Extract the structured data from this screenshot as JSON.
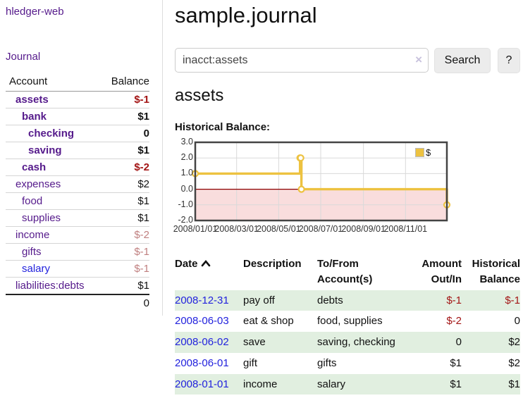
{
  "app": {
    "brand": "hledger-web",
    "nav_journal": "Journal"
  },
  "colors": {
    "link_purple": "#551a8b",
    "link_blue": "#2222dd",
    "negative_strong": "#a31515",
    "negative_soft": "#c08080",
    "series_gold": "#edc240",
    "negative_region_pink": "#f9dddd",
    "zero_line_red": "#8b0000",
    "row_stripe_green": "#e1efe0"
  },
  "sidebar": {
    "header": {
      "account": "Account",
      "balance": "Balance"
    },
    "accounts": [
      {
        "name": "assets",
        "depth": 1,
        "bold": true,
        "link_tone": "purple",
        "balance": "$-1",
        "balance_tone": "neg-strong"
      },
      {
        "name": "bank",
        "depth": 2,
        "bold": true,
        "link_tone": "purple",
        "balance": "$1",
        "balance_tone": "black"
      },
      {
        "name": "checking",
        "depth": 3,
        "bold": true,
        "link_tone": "purple",
        "balance": "0",
        "balance_tone": "black"
      },
      {
        "name": "saving",
        "depth": 3,
        "bold": true,
        "link_tone": "purple",
        "balance": "$1",
        "balance_tone": "black"
      },
      {
        "name": "cash",
        "depth": 2,
        "bold": true,
        "link_tone": "purple",
        "balance": "$-2",
        "balance_tone": "neg-strong"
      },
      {
        "name": "expenses",
        "depth": 1,
        "bold": false,
        "link_tone": "purple",
        "balance": "$2",
        "balance_tone": "black"
      },
      {
        "name": "food",
        "depth": 2,
        "bold": false,
        "link_tone": "purple",
        "balance": "$1",
        "balance_tone": "black"
      },
      {
        "name": "supplies",
        "depth": 2,
        "bold": false,
        "link_tone": "purple",
        "balance": "$1",
        "balance_tone": "black"
      },
      {
        "name": "income",
        "depth": 1,
        "bold": false,
        "link_tone": "purple",
        "balance": "$-2",
        "balance_tone": "neg-soft"
      },
      {
        "name": "gifts",
        "depth": 2,
        "bold": false,
        "link_tone": "purple",
        "balance": "$-1",
        "balance_tone": "neg-soft"
      },
      {
        "name": "salary",
        "depth": 2,
        "bold": false,
        "link_tone": "blue",
        "balance": "$-1",
        "balance_tone": "neg-soft"
      },
      {
        "name": "liabilities:debts",
        "depth": 1,
        "bold": false,
        "link_tone": "purple",
        "balance": "$1",
        "balance_tone": "black"
      }
    ],
    "total": "0"
  },
  "main": {
    "title": "sample.journal",
    "search": {
      "value": "inacct:assets",
      "clear_icon": "×",
      "button": "Search",
      "help": "?"
    },
    "account_heading": "assets",
    "chart_label": "Historical Balance:"
  },
  "chart_data": {
    "type": "line",
    "title": "Historical Balance:",
    "step": true,
    "series": [
      {
        "name": "$",
        "color": "#edc240",
        "points": [
          [
            "2008-01-01",
            1
          ],
          [
            "2008-06-01",
            2
          ],
          [
            "2008-06-02",
            2
          ],
          [
            "2008-06-03",
            0
          ],
          [
            "2008-12-31",
            -1
          ]
        ]
      }
    ],
    "x_ticks": [
      "2008/01/01",
      "2008/03/01",
      "2008/05/01",
      "2008/07/01",
      "2008/09/01",
      "2008/11/01"
    ],
    "y_ticks": [
      3.0,
      2.0,
      1.0,
      0.0,
      -1.0,
      -2.0
    ],
    "xlim": [
      "2008-01-01",
      "2008-12-31"
    ],
    "ylim": [
      -2,
      3
    ],
    "grid": true,
    "legend": {
      "label": "$",
      "position": "top-right"
    }
  },
  "register": {
    "columns": [
      {
        "line1": "Date",
        "sort": "asc",
        "align": "left"
      },
      {
        "line1": "Description",
        "align": "left"
      },
      {
        "line1": "To/From",
        "line2": "Account(s)",
        "align": "left"
      },
      {
        "line1": "Amount",
        "line2": "Out/In",
        "align": "right"
      },
      {
        "line1": "Historical",
        "line2": "Balance",
        "align": "right"
      }
    ],
    "rows": [
      {
        "date": "2008-12-31",
        "description": "pay off",
        "accounts": "debts",
        "amount": "$-1",
        "amount_tone": "neg-strong",
        "balance": "$-1",
        "balance_tone": "neg-strong"
      },
      {
        "date": "2008-06-03",
        "description": "eat & shop",
        "accounts": "food, supplies",
        "amount": "$-2",
        "amount_tone": "neg-strong",
        "balance": "0",
        "balance_tone": "black"
      },
      {
        "date": "2008-06-02",
        "description": "save",
        "accounts": "saving, checking",
        "amount": "0",
        "amount_tone": "black",
        "balance": "$2",
        "balance_tone": "black"
      },
      {
        "date": "2008-06-01",
        "description": "gift",
        "accounts": "gifts",
        "amount": "$1",
        "amount_tone": "black",
        "balance": "$2",
        "balance_tone": "black"
      },
      {
        "date": "2008-01-01",
        "description": "income",
        "accounts": "salary",
        "amount": "$1",
        "amount_tone": "black",
        "balance": "$1",
        "balance_tone": "black"
      }
    ]
  }
}
